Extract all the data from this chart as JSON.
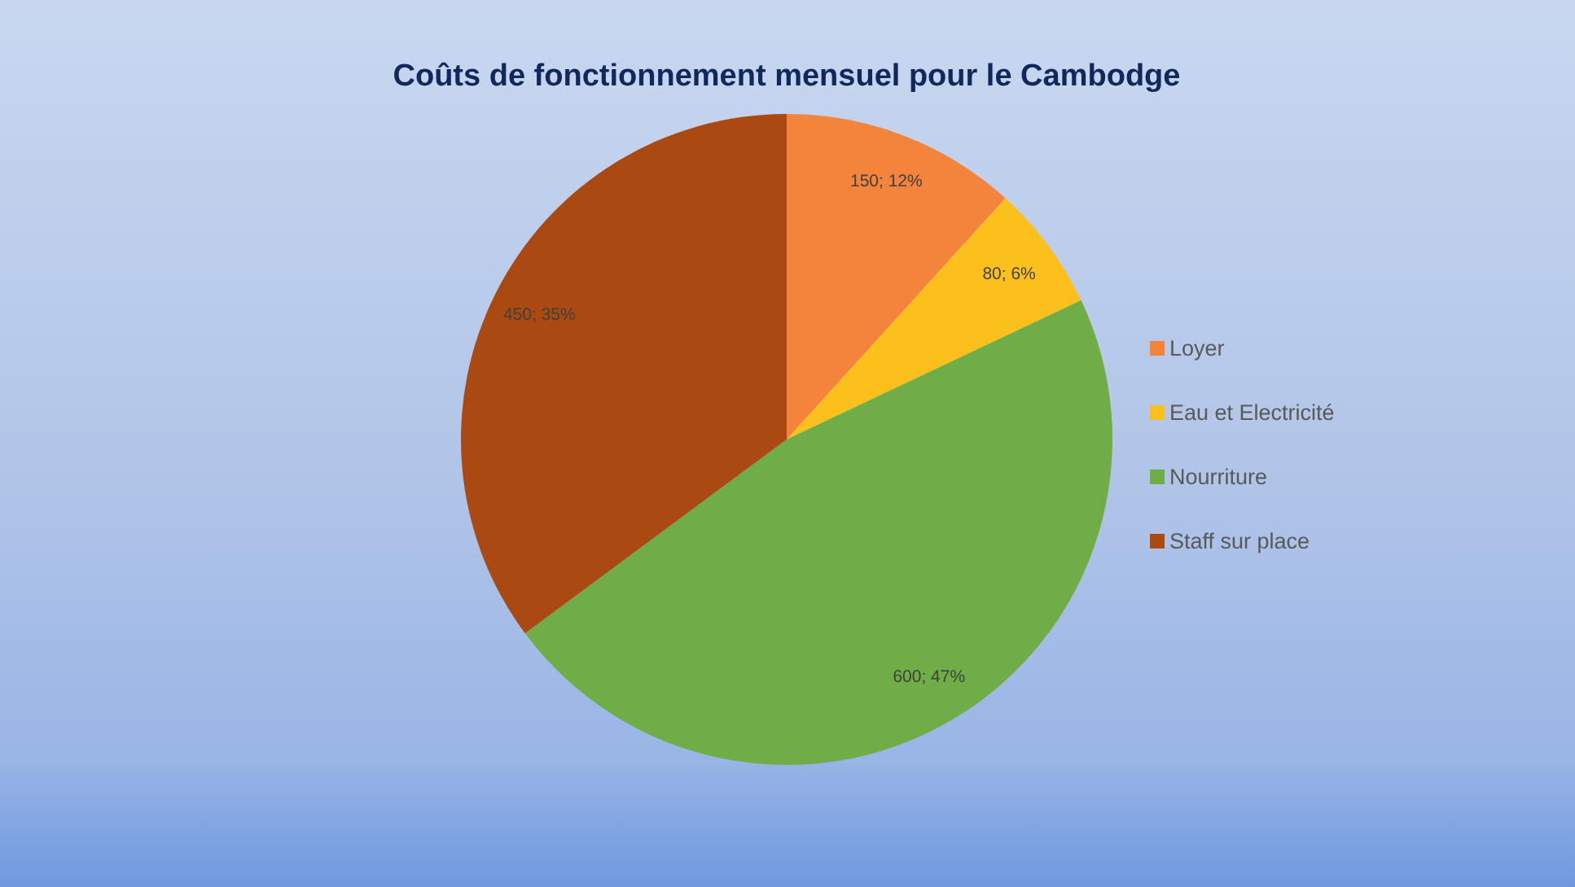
{
  "chart_data": {
    "type": "pie",
    "title": "Coûts de fonctionnement mensuel pour le Cambodge",
    "categories": [
      "Loyer",
      "Eau et Electricité",
      "Nourriture",
      "Staff sur place"
    ],
    "values": [
      150,
      80,
      600,
      450
    ],
    "colors": [
      "#f4843c",
      "#fcc01c",
      "#6fad46",
      "#aa4a12"
    ],
    "value_labels": [
      "150; 12%",
      "80; 6%",
      "600; 47%",
      "450; 35%"
    ],
    "legend": "right"
  }
}
